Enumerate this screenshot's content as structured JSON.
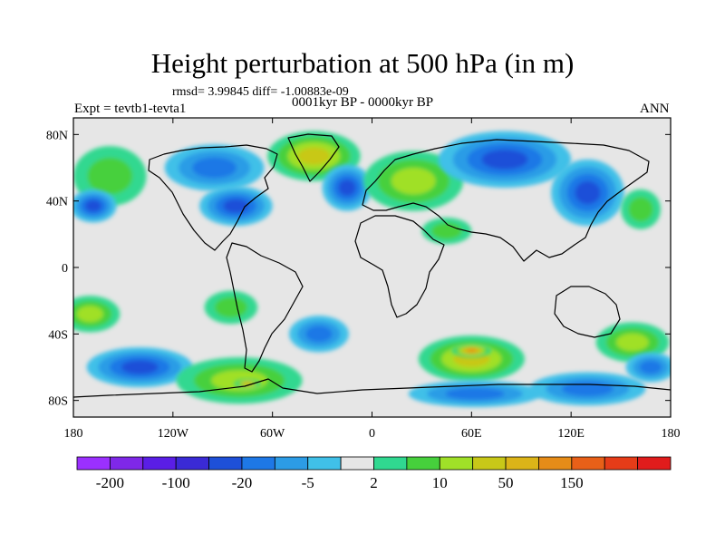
{
  "title": "Height perturbation at 500 hPa (in m)",
  "stats_line": "rmsd= 3.99845 diff= -1.00883e-09",
  "subtitle": "0001kyr BP - 0000kyr BP",
  "experiment": "Expt = tevtb1-tevta1",
  "season": "ANN",
  "map": {
    "projection": "cylindrical-equidistant",
    "lon_range": [
      -180,
      180
    ],
    "lat_range": [
      -90,
      90
    ],
    "lon_ticks": [
      {
        "lon": -180,
        "label": "180"
      },
      {
        "lon": -120,
        "label": "120W"
      },
      {
        "lon": -60,
        "label": "60W"
      },
      {
        "lon": 0,
        "label": "0"
      },
      {
        "lon": 60,
        "label": "60E"
      },
      {
        "lon": 120,
        "label": "120E"
      },
      {
        "lon": 180,
        "label": "180"
      }
    ],
    "lat_ticks": [
      {
        "lat": 80,
        "label": "80N"
      },
      {
        "lat": 40,
        "label": "40N"
      },
      {
        "lat": 0,
        "label": "0"
      },
      {
        "lat": -40,
        "label": "40S"
      },
      {
        "lat": -80,
        "label": "80S"
      }
    ],
    "background_color": "#e6e6e6",
    "coastline_color": "#000000",
    "anomalies": [
      {
        "lon": -35,
        "lat": 67,
        "rlon": 28,
        "rlat": 15,
        "level": 4
      },
      {
        "lon": -158,
        "lat": 55,
        "rlon": 22,
        "rlat": 18,
        "level": 2
      },
      {
        "lon": -168,
        "lat": 37,
        "rlon": 14,
        "rlat": 10,
        "level": -4
      },
      {
        "lon": -95,
        "lat": 60,
        "rlon": 30,
        "rlat": 14,
        "level": -3
      },
      {
        "lon": -82,
        "lat": 37,
        "rlon": 22,
        "rlat": 12,
        "level": -4
      },
      {
        "lon": -15,
        "lat": 48,
        "rlon": 15,
        "rlat": 14,
        "level": -4
      },
      {
        "lon": 25,
        "lat": 52,
        "rlon": 30,
        "rlat": 18,
        "level": 3
      },
      {
        "lon": 45,
        "lat": 22,
        "rlon": 15,
        "rlat": 8,
        "level": 2
      },
      {
        "lon": 80,
        "lat": 65,
        "rlon": 40,
        "rlat": 17,
        "level": -4
      },
      {
        "lon": 130,
        "lat": 45,
        "rlon": 22,
        "rlat": 20,
        "level": -4
      },
      {
        "lon": 162,
        "lat": 35,
        "rlon": 12,
        "rlat": 12,
        "level": 2
      },
      {
        "lon": -170,
        "lat": -28,
        "rlon": 18,
        "rlat": 11,
        "level": 3
      },
      {
        "lon": -140,
        "lat": -60,
        "rlon": 32,
        "rlat": 12,
        "level": -4
      },
      {
        "lon": -85,
        "lat": -24,
        "rlon": 16,
        "rlat": 10,
        "level": 2
      },
      {
        "lon": -80,
        "lat": -68,
        "rlon": 38,
        "rlat": 14,
        "level": 3
      },
      {
        "lon": -75,
        "lat": -70,
        "rlon": 8,
        "rlat": 3,
        "level": 5
      },
      {
        "lon": -32,
        "lat": -40,
        "rlon": 18,
        "rlat": 11,
        "level": -3
      },
      {
        "lon": 60,
        "lat": -55,
        "rlon": 32,
        "rlat": 14,
        "level": 4
      },
      {
        "lon": 60,
        "lat": -50,
        "rlon": 12,
        "rlat": 4,
        "level": 6
      },
      {
        "lon": 62,
        "lat": -76,
        "rlon": 40,
        "rlat": 8,
        "level": -3
      },
      {
        "lon": 130,
        "lat": -73,
        "rlon": 35,
        "rlat": 10,
        "level": -3
      },
      {
        "lon": 157,
        "lat": -45,
        "rlon": 22,
        "rlat": 12,
        "level": 3
      },
      {
        "lon": 168,
        "lat": -60,
        "rlon": 15,
        "rlat": 9,
        "level": -3
      }
    ]
  },
  "colorbar": {
    "colors": [
      "#9b30ff",
      "#7f28e8",
      "#5a1ee6",
      "#3a2ad6",
      "#1e50d8",
      "#1e78e6",
      "#2c9ce6",
      "#40c0e8",
      "#e6e6e6",
      "#30d890",
      "#46d03c",
      "#a0e028",
      "#c8c818",
      "#dcb418",
      "#e68c18",
      "#e86018",
      "#e63c18",
      "#e01c1c"
    ],
    "tick_labels": [
      {
        "index": 1,
        "label": "-200"
      },
      {
        "index": 3,
        "label": "-100"
      },
      {
        "index": 5,
        "label": "-20"
      },
      {
        "index": 7,
        "label": "-5"
      },
      {
        "index": 9,
        "label": "2"
      },
      {
        "index": 11,
        "label": "10"
      },
      {
        "index": 13,
        "label": "50"
      },
      {
        "index": 15,
        "label": "150"
      }
    ]
  }
}
